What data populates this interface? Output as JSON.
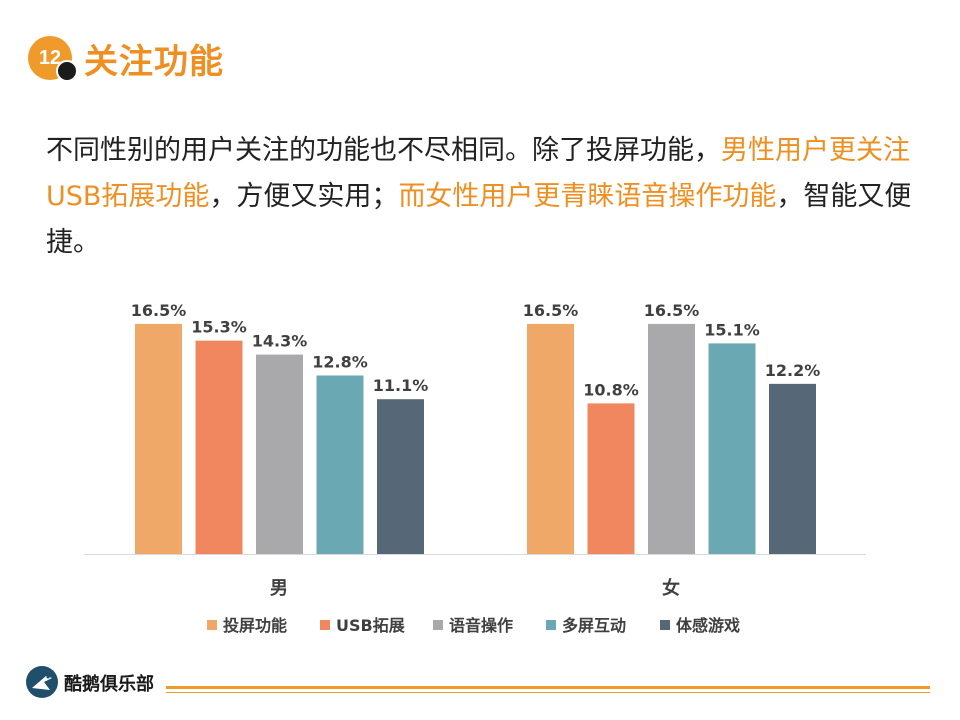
{
  "header": {
    "badge_number": "12",
    "title": "关注功能"
  },
  "paragraph": {
    "part1": "不同性别的用户关注的功能也不尽相同。除了投屏功能，",
    "part2_highlight": "男性用户更关注USB拓展功能",
    "part3": "，方便又实用；",
    "part4_highlight": "而女性用户更青睐语音操作功能",
    "part5": "，智能又便捷。"
  },
  "colors": {
    "accent": "#ef8f22",
    "series": [
      "#f0a868",
      "#f0875f",
      "#a9a8aa",
      "#6aa8b3",
      "#566878"
    ]
  },
  "chart_data": {
    "type": "bar",
    "categories": [
      "男",
      "女"
    ],
    "series": [
      {
        "name": "投屏功能",
        "values": [
          16.5,
          16.5
        ]
      },
      {
        "name": "USB拓展",
        "values": [
          15.3,
          10.8
        ]
      },
      {
        "name": "语音操作",
        "values": [
          14.3,
          16.5
        ]
      },
      {
        "name": "多屏互动",
        "values": [
          12.8,
          15.1
        ]
      },
      {
        "name": "体感游戏",
        "values": [
          11.1,
          12.2
        ]
      }
    ],
    "data_labels": [
      [
        "16.5%",
        "15.3%",
        "14.3%",
        "12.8%",
        "11.1%"
      ],
      [
        "16.5%",
        "10.8%",
        "16.5%",
        "15.1%",
        "12.2%"
      ]
    ],
    "ylim": [
      0,
      18.5
    ],
    "legend_position": "bottom",
    "title": "",
    "xlabel": "",
    "ylabel": ""
  },
  "footer": {
    "brand": "酷鹅俱乐部"
  }
}
